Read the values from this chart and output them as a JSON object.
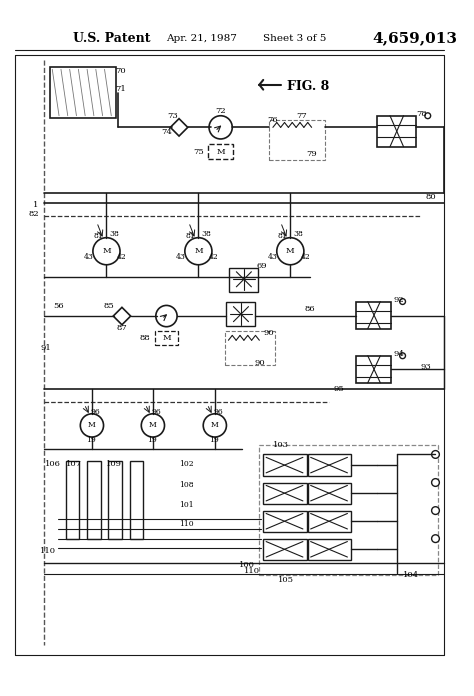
{
  "title_left": "U.S. Patent",
  "title_date": "Apr. 21, 1987",
  "title_sheet": "Sheet 3 of 5",
  "title_patent": "4,659,013",
  "fig_label": "FIG. 8",
  "bg_color": "#ffffff",
  "line_color": "#1a1a1a",
  "dashed_color": "#333333"
}
